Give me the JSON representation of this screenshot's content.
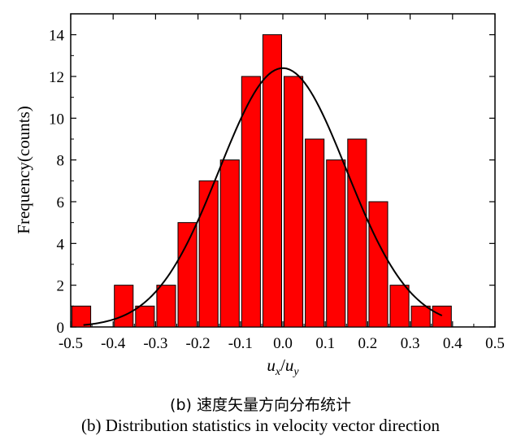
{
  "chart_data": {
    "type": "bar",
    "xlabel": "u",
    "xlabel_sub_x": "x",
    "xlabel_sep": "/",
    "xlabel_den": "u",
    "xlabel_sub_y": "y",
    "ylabel": "Frequency(counts)",
    "xlim": [
      -0.5,
      0.5
    ],
    "ylim": [
      0,
      15
    ],
    "xticks": [
      "-0.5",
      "-0.4",
      "-0.3",
      "-0.2",
      "-0.1",
      "0.0",
      "0.1",
      "0.2",
      "0.3",
      "0.4",
      "0.5"
    ],
    "xtick_values": [
      -0.5,
      -0.4,
      -0.3,
      -0.2,
      -0.1,
      0.0,
      0.1,
      0.2,
      0.3,
      0.4,
      0.5
    ],
    "yticks": [
      "0",
      "2",
      "4",
      "6",
      "8",
      "10",
      "12",
      "14"
    ],
    "ytick_values": [
      0,
      2,
      4,
      6,
      8,
      10,
      12,
      14
    ],
    "bin_width": 0.05,
    "bins": [
      {
        "x": -0.475,
        "count": 1
      },
      {
        "x": -0.425,
        "count": 0
      },
      {
        "x": -0.375,
        "count": 2
      },
      {
        "x": -0.325,
        "count": 1
      },
      {
        "x": -0.275,
        "count": 2
      },
      {
        "x": -0.225,
        "count": 5
      },
      {
        "x": -0.175,
        "count": 7
      },
      {
        "x": -0.125,
        "count": 8
      },
      {
        "x": -0.075,
        "count": 12
      },
      {
        "x": -0.025,
        "count": 14
      },
      {
        "x": 0.025,
        "count": 12
      },
      {
        "x": 0.075,
        "count": 9
      },
      {
        "x": 0.125,
        "count": 8
      },
      {
        "x": 0.175,
        "count": 9
      },
      {
        "x": 0.225,
        "count": 6
      },
      {
        "x": 0.275,
        "count": 2
      },
      {
        "x": 0.325,
        "count": 1
      },
      {
        "x": 0.375,
        "count": 1
      }
    ],
    "fit_curve": {
      "type": "gaussian",
      "amplitude": 12.4,
      "mean": 0.0,
      "sigma": 0.15,
      "x_range": [
        -0.47,
        0.375
      ],
      "color": "#000000"
    },
    "bar_color": "#ff0000",
    "bar_edge_color": "#000000"
  },
  "caption": {
    "zh": "(b) 速度矢量方向分布统计",
    "en": "(b) Distribution statistics in velocity vector direction"
  }
}
